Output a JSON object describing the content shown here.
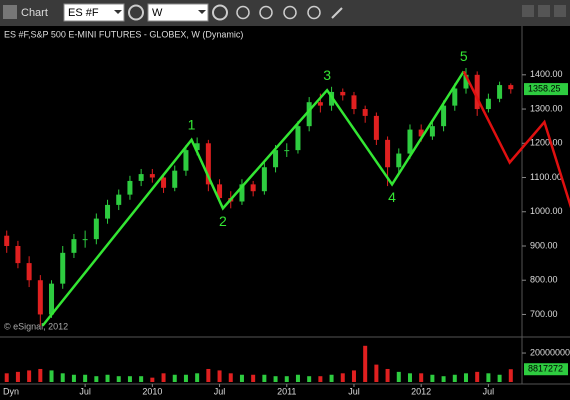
{
  "toolbar": {
    "title": "Chart",
    "symbol": "ES #F",
    "interval": "W"
  },
  "chart_data": {
    "type": "candlestick",
    "title": "ES #F,S&P 500 E-MINI FUTURES - GLOBEX, W (Dynamic)",
    "x": [
      -1,
      0,
      1,
      2,
      3,
      4,
      5,
      6,
      7,
      8,
      9,
      10,
      11,
      12,
      13,
      14,
      15,
      16,
      17,
      18,
      19,
      20,
      21,
      22,
      23,
      24,
      25,
      26,
      27,
      28,
      29,
      30,
      31,
      32,
      33,
      34,
      35,
      36,
      37,
      38,
      39,
      40,
      41,
      42,
      43,
      44
    ],
    "open": [
      930,
      900,
      850,
      800,
      700,
      790,
      880,
      920,
      920,
      980,
      1020,
      1050,
      1090,
      1110,
      1100,
      1070,
      1120,
      1180,
      1200,
      1080,
      1040,
      1030,
      1080,
      1060,
      1130,
      1180,
      1180,
      1250,
      1320,
      1310,
      1350,
      1340,
      1300,
      1280,
      1210,
      1130,
      1170,
      1240,
      1220,
      1250,
      1310,
      1360,
      1400,
      1300,
      1330,
      1370
    ],
    "high": [
      945,
      915,
      870,
      815,
      800,
      900,
      935,
      945,
      995,
      1035,
      1065,
      1105,
      1125,
      1125,
      1110,
      1135,
      1195,
      1217,
      1210,
      1095,
      1060,
      1095,
      1090,
      1145,
      1195,
      1200,
      1265,
      1335,
      1345,
      1365,
      1360,
      1350,
      1310,
      1290,
      1220,
      1185,
      1255,
      1255,
      1265,
      1325,
      1375,
      1420,
      1410,
      1345,
      1380,
      1375
    ],
    "low": [
      880,
      835,
      780,
      667,
      690,
      775,
      865,
      895,
      905,
      965,
      1005,
      1035,
      1075,
      1085,
      1055,
      1060,
      1105,
      1165,
      1060,
      1025,
      1010,
      1020,
      1045,
      1050,
      1115,
      1160,
      1170,
      1235,
      1290,
      1295,
      1325,
      1285,
      1260,
      1195,
      1075,
      1110,
      1155,
      1205,
      1210,
      1235,
      1295,
      1345,
      1280,
      1290,
      1320,
      1345
    ],
    "close": [
      900,
      850,
      800,
      700,
      790,
      880,
      920,
      920,
      980,
      1020,
      1050,
      1090,
      1110,
      1100,
      1070,
      1120,
      1180,
      1200,
      1080,
      1040,
      1030,
      1080,
      1060,
      1130,
      1180,
      1180,
      1250,
      1320,
      1310,
      1350,
      1340,
      1300,
      1280,
      1210,
      1130,
      1170,
      1240,
      1220,
      1250,
      1310,
      1360,
      1400,
      1300,
      1330,
      1370,
      1358
    ],
    "up_color": "#2ecc40",
    "down_color": "#e02020",
    "xlim": [
      -1.6,
      45
    ],
    "xticks": [
      {
        "value": 6,
        "label": "Jul"
      },
      {
        "value": 12,
        "label": "2010"
      },
      {
        "value": 18,
        "label": "Jul"
      },
      {
        "value": 24,
        "label": "2011"
      },
      {
        "value": 30,
        "label": "Jul"
      },
      {
        "value": 36,
        "label": "2012"
      },
      {
        "value": 42,
        "label": "Jul"
      }
    ],
    "ylim": [
      640,
      1490
    ],
    "yticks": [
      {
        "value": 700,
        "label": "700.00"
      },
      {
        "value": 800,
        "label": "800.00"
      },
      {
        "value": 900,
        "label": "900.00"
      },
      {
        "value": 1000,
        "label": "1000.00"
      },
      {
        "value": 1100,
        "label": "1100.00"
      },
      {
        "value": 1200,
        "label": "1200.00"
      },
      {
        "value": 1300,
        "label": "1300.00"
      },
      {
        "value": 1400,
        "label": "1400.00"
      }
    ],
    "last_price": 1358.25,
    "waves": {
      "color": "#33e633",
      "points": [
        {
          "x": 2.2,
          "y": 667
        },
        {
          "x": 15.5,
          "y": 1210,
          "label": "1"
        },
        {
          "x": 18.3,
          "y": 1010,
          "label": "2"
        },
        {
          "x": 27.6,
          "y": 1355,
          "label": "3"
        },
        {
          "x": 33.4,
          "y": 1080,
          "label": "4"
        },
        {
          "x": 39.8,
          "y": 1410,
          "label": "5"
        }
      ]
    },
    "projection": {
      "color": "#e01010",
      "points": [
        {
          "x": 39.8,
          "y": 1410
        },
        {
          "x": 43.9,
          "y": 1144
        },
        {
          "x": 47,
          "y": 1262
        },
        {
          "x": 49.5,
          "y": 1000
        }
      ]
    },
    "volume": {
      "values": [
        6000000,
        7000000,
        8000000,
        9000000,
        8000000,
        6000000,
        5000000,
        5000000,
        4000000,
        5000000,
        4000000,
        4000000,
        4000000,
        3000000,
        6000000,
        5000000,
        5000000,
        6000000,
        9000000,
        8000000,
        6000000,
        5000000,
        5000000,
        5000000,
        4000000,
        4000000,
        5000000,
        4000000,
        4000000,
        5000000,
        6000000,
        8000000,
        25000000,
        12000000,
        9000000,
        7000000,
        6000000,
        6000000,
        5000000,
        4000000,
        5000000,
        6000000,
        7000000,
        6000000,
        5000000,
        8817272
      ],
      "ylim": [
        0,
        29000000
      ],
      "yticks": [
        20000000
      ],
      "last": 8817272
    },
    "credit": "© eSignal, 2012",
    "footer": "Dyn"
  }
}
